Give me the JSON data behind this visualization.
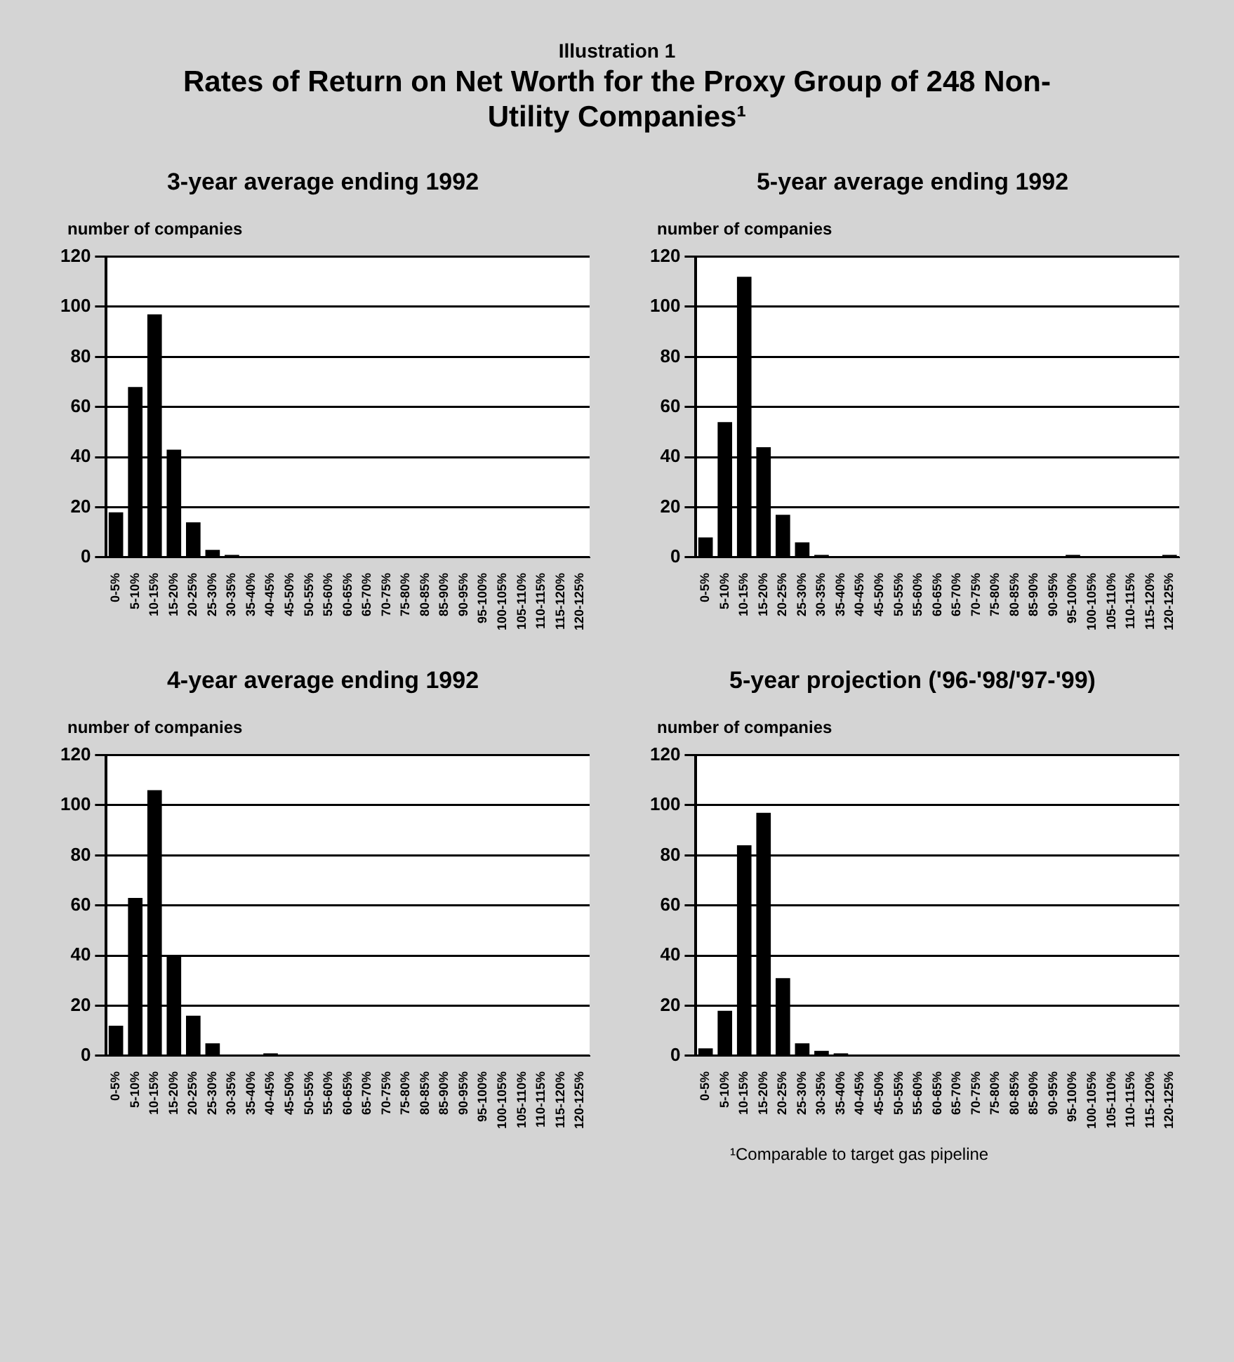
{
  "chart_data": [
    {
      "type": "other",
      "subtitle": "Illustration 1",
      "title": "Rates of Return on Net Worth for the Proxy Group of 248 Non-Utility Companies¹"
    },
    {
      "type": "bar",
      "title": "3-year average ending 1992",
      "ylabel": "number of companies",
      "categories": [
        "0-5%",
        "5-10%",
        "10-15%",
        "15-20%",
        "20-25%",
        "25-30%",
        "30-35%",
        "35-40%",
        "40-45%",
        "45-50%",
        "50-55%",
        "55-60%",
        "60-65%",
        "65-70%",
        "70-75%",
        "75-80%",
        "80-85%",
        "85-90%",
        "90-95%",
        "95-100%",
        "100-105%",
        "105-110%",
        "110-115%",
        "115-120%",
        "120-125%"
      ],
      "values": [
        18,
        68,
        97,
        43,
        14,
        3,
        1,
        0,
        0,
        0,
        0,
        0,
        0,
        0,
        0,
        0,
        0,
        0,
        0,
        0,
        0,
        0,
        0,
        0,
        0
      ],
      "color": "#000000",
      "ylim": [
        0,
        120
      ],
      "yticks": [
        0,
        20,
        40,
        60,
        80,
        100,
        120
      ],
      "grid": "y"
    },
    {
      "type": "bar",
      "title": "5-year average ending 1992",
      "ylabel": "number of companies",
      "categories": [
        "0-5%",
        "5-10%",
        "10-15%",
        "15-20%",
        "20-25%",
        "25-30%",
        "30-35%",
        "35-40%",
        "40-45%",
        "45-50%",
        "50-55%",
        "55-60%",
        "60-65%",
        "65-70%",
        "70-75%",
        "75-80%",
        "80-85%",
        "85-90%",
        "90-95%",
        "95-100%",
        "100-105%",
        "105-110%",
        "110-115%",
        "115-120%",
        "120-125%"
      ],
      "values": [
        8,
        54,
        112,
        44,
        17,
        6,
        1,
        0,
        0,
        0,
        0,
        0,
        0,
        0,
        0,
        0,
        0,
        0,
        0,
        1,
        0,
        0,
        0,
        0,
        1
      ],
      "color": "#000000",
      "ylim": [
        0,
        120
      ],
      "yticks": [
        0,
        20,
        40,
        60,
        80,
        100,
        120
      ],
      "grid": "y"
    },
    {
      "type": "bar",
      "title": "4-year average ending 1992",
      "ylabel": "number of companies",
      "categories": [
        "0-5%",
        "5-10%",
        "10-15%",
        "15-20%",
        "20-25%",
        "25-30%",
        "30-35%",
        "35-40%",
        "40-45%",
        "45-50%",
        "50-55%",
        "55-60%",
        "60-65%",
        "65-70%",
        "70-75%",
        "75-80%",
        "80-85%",
        "85-90%",
        "90-95%",
        "95-100%",
        "100-105%",
        "105-110%",
        "110-115%",
        "115-120%",
        "120-125%"
      ],
      "values": [
        12,
        63,
        106,
        40,
        16,
        5,
        0,
        0,
        1,
        0,
        0,
        0,
        0,
        0,
        0,
        0,
        0,
        0,
        0,
        0,
        0,
        0,
        0,
        0,
        0
      ],
      "color": "#000000",
      "ylim": [
        0,
        120
      ],
      "yticks": [
        0,
        20,
        40,
        60,
        80,
        100,
        120
      ],
      "grid": "y"
    },
    {
      "type": "bar",
      "title": "5-year projection ('96-'98/'97-'99)",
      "ylabel": "number of companies",
      "categories": [
        "0-5%",
        "5-10%",
        "10-15%",
        "15-20%",
        "20-25%",
        "25-30%",
        "30-35%",
        "35-40%",
        "40-45%",
        "45-50%",
        "50-55%",
        "55-60%",
        "60-65%",
        "65-70%",
        "70-75%",
        "75-80%",
        "80-85%",
        "85-90%",
        "90-95%",
        "95-100%",
        "100-105%",
        "105-110%",
        "110-115%",
        "115-120%",
        "120-125%"
      ],
      "values": [
        3,
        18,
        84,
        97,
        31,
        5,
        2,
        1,
        0,
        0,
        0,
        0,
        0,
        0,
        0,
        0,
        0,
        0,
        0,
        0,
        0,
        0,
        0,
        0,
        0
      ],
      "color": "#000000",
      "ylim": [
        0,
        120
      ],
      "yticks": [
        0,
        20,
        40,
        60,
        80,
        100,
        120
      ],
      "grid": "y",
      "annotations": [
        "¹Comparable to target gas pipeline"
      ]
    }
  ]
}
